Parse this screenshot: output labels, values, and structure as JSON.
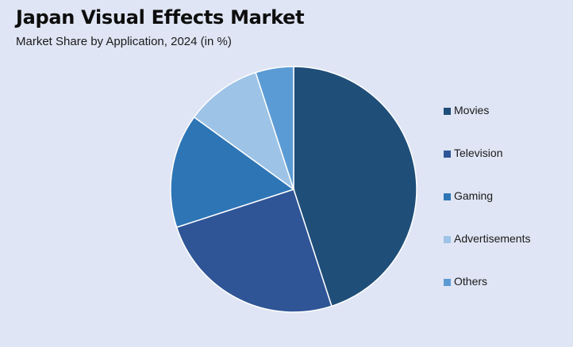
{
  "header": {
    "title": "Japan Visual Effects Market",
    "subtitle": "Market Share by Application, 2024 (in %)"
  },
  "chart_data": {
    "type": "pie",
    "title": "Japan Visual Effects Market",
    "subtitle": "Market Share by Application, 2024 (in %)",
    "start_angle": "12 o'clock",
    "direction": "clockwise",
    "legend_position": "right",
    "slices": [
      {
        "label": "Movies",
        "value": 45,
        "color": "#1f4e79"
      },
      {
        "label": "Television",
        "value": 25,
        "color": "#2f5597"
      },
      {
        "label": "Gaming",
        "value": 15,
        "color": "#2e75b6"
      },
      {
        "label": "Advertisements",
        "value": 10,
        "color": "#9dc3e6"
      },
      {
        "label": "Others",
        "value": 5,
        "color": "#5b9bd5"
      }
    ]
  }
}
